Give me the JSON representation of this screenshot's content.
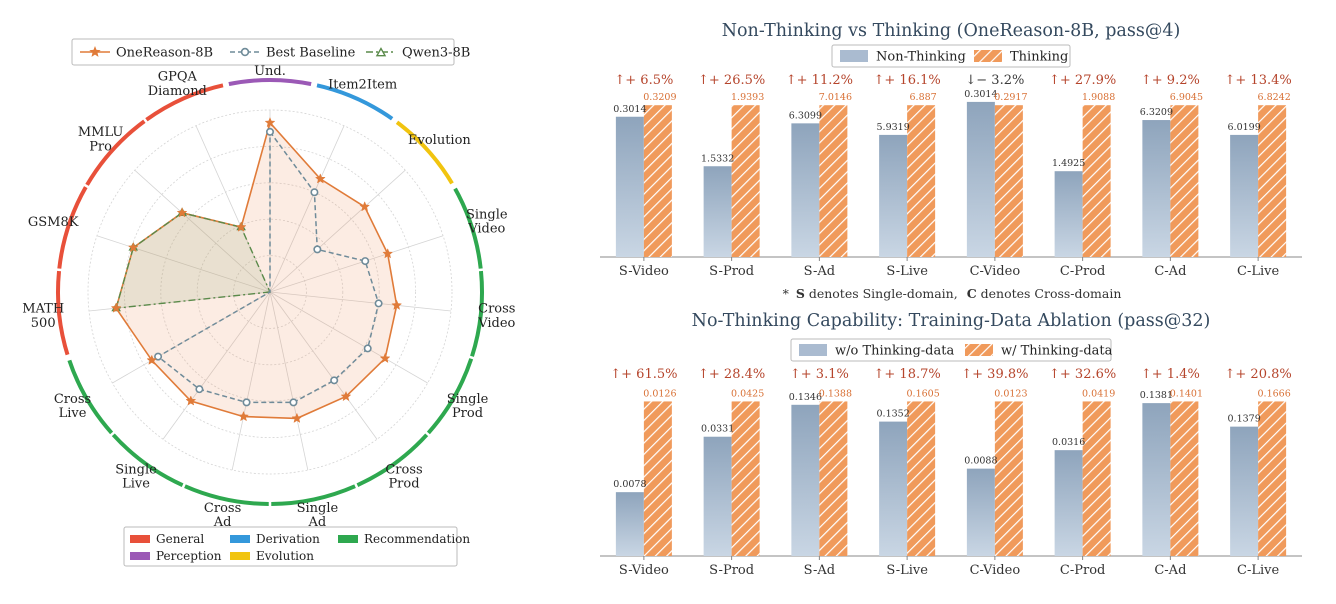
{
  "chart_data": [
    {
      "type": "radar",
      "axes": [
        "Item Und.",
        "Item2Item",
        "Evolution",
        "Single Video",
        "Cross Video",
        "Single Prod",
        "Cross Prod",
        "Single Ad",
        "Cross Ad",
        "Single Live",
        "Cross Live",
        "MATH 500",
        "GSM8K",
        "MMLU Pro",
        "GPQA Diamond"
      ],
      "rlim": [
        0,
        1
      ],
      "grid": true,
      "legend_position": "top",
      "series": [
        {
          "name": "OneReason-8B",
          "color": "#e07b39",
          "marker": "star",
          "values": [
            0.93,
            0.68,
            0.7,
            0.68,
            0.7,
            0.73,
            0.71,
            0.71,
            0.7,
            0.74,
            0.75,
            0.85,
            0.79,
            0.65,
            0.39
          ]
        },
        {
          "name": "Best Baseline",
          "color": "#6f8b99",
          "marker": "circle",
          "values": [
            0.88,
            0.6,
            0.35,
            0.55,
            0.6,
            0.62,
            0.6,
            0.62,
            0.62,
            0.66,
            0.71,
            0.0,
            0.0,
            0.0,
            0.0
          ]
        },
        {
          "name": "Qwen3-8B",
          "color": "#5a8a4a",
          "marker": "triangle",
          "values": [
            0,
            0,
            0,
            0,
            0,
            0,
            0,
            0,
            0,
            0,
            0,
            0.85,
            0.79,
            0.65,
            0.39
          ]
        }
      ],
      "category_groups": [
        {
          "name": "General",
          "color": "#e8503a",
          "axes": [
            "MATH 500",
            "GSM8K",
            "MMLU Pro",
            "GPQA Diamond"
          ]
        },
        {
          "name": "Perception",
          "color": "#9b59b6",
          "axes": [
            "Item Und."
          ]
        },
        {
          "name": "Derivation",
          "color": "#3498db",
          "axes": [
            "Item2Item"
          ]
        },
        {
          "name": "Evolution",
          "color": "#f1c40f",
          "axes": [
            "Evolution"
          ]
        },
        {
          "name": "Recommendation",
          "color": "#2ea84f",
          "axes": [
            "Single Video",
            "Cross Video",
            "Single Prod",
            "Cross Prod",
            "Single Ad",
            "Cross Ad",
            "Single Live",
            "Cross Live"
          ]
        }
      ],
      "category_legend_order": [
        "General",
        "Derivation",
        "Recommendation",
        "Perception",
        "Evolution"
      ]
    },
    {
      "type": "bar",
      "title": "Non-Thinking vs Thinking (OneReason-8B, pass@4)",
      "categories": [
        "S-Video",
        "S-Prod",
        "S-Ad",
        "S-Live",
        "C-Video",
        "C-Prod",
        "C-Ad",
        "C-Live"
      ],
      "series": [
        {
          "name": "Non-Thinking",
          "labels": [
            "0.3014",
            "1.5332",
            "6.3099",
            "5.9319",
            "0.3014",
            "1.4925",
            "6.3209",
            "6.0199"
          ],
          "relative_height": [
            0.85,
            0.55,
            0.81,
            0.74,
            0.94,
            0.52,
            0.83,
            0.74
          ]
        },
        {
          "name": "Thinking",
          "labels": [
            "0.3209",
            "1.9393",
            "7.0146",
            "6.887",
            "0.2917",
            "1.9088",
            "6.9045",
            "6.8242"
          ],
          "relative_height": [
            0.92,
            0.92,
            0.92,
            0.92,
            0.92,
            0.92,
            0.92,
            0.92
          ]
        }
      ],
      "annotations": [
        "↑+ 6.5%",
        "↑+ 26.5%",
        "↑+ 11.2%",
        "↑+ 16.1%",
        "↓− 3.2%",
        "↑+ 27.9%",
        "↑+ 9.2%",
        "↑+ 13.4%"
      ],
      "legend_position": "top"
    },
    {
      "type": "bar",
      "title": "No-Thinking Capability: Training-Data Ablation (pass@32)",
      "categories": [
        "S-Video",
        "S-Prod",
        "S-Ad",
        "S-Live",
        "C-Video",
        "C-Prod",
        "C-Ad",
        "C-Live"
      ],
      "series": [
        {
          "name": "w/o Thinking-data",
          "values": [
            0.0078,
            0.0331,
            0.1346,
            0.1352,
            0.0088,
            0.0316,
            0.1381,
            0.1379
          ],
          "relative_height": [
            0.38,
            0.71,
            0.9,
            0.8,
            0.52,
            0.63,
            0.91,
            0.77
          ]
        },
        {
          "name": "w/ Thinking-data",
          "values": [
            0.0126,
            0.0425,
            0.1388,
            0.1605,
            0.0123,
            0.0419,
            0.1401,
            0.1666
          ],
          "relative_height": [
            0.92,
            0.92,
            0.92,
            0.92,
            0.92,
            0.92,
            0.92,
            0.92
          ]
        }
      ],
      "annotations": [
        "↑+ 61.5%",
        "↑+ 28.4%",
        "↑+ 3.1%",
        "↑+ 18.7%",
        "↑+ 39.8%",
        "↑+ 32.6%",
        "↑+ 1.4%",
        "↑+ 20.8%"
      ],
      "legend_position": "top"
    }
  ],
  "footnote": {
    "star": "*",
    "s_bold": "S",
    "s_text": " denotes Single-domain,",
    "c_bold": "C",
    "c_text": " denotes Cross-domain"
  },
  "colors": {
    "orange": "#e07b39",
    "baseline": "#6f8b99",
    "qwen": "#5a8a4a",
    "blue_bar": "#8fa6bd",
    "up": "#b5442b",
    "down": "#3a3a3a",
    "value_orange": "#d86f33"
  }
}
